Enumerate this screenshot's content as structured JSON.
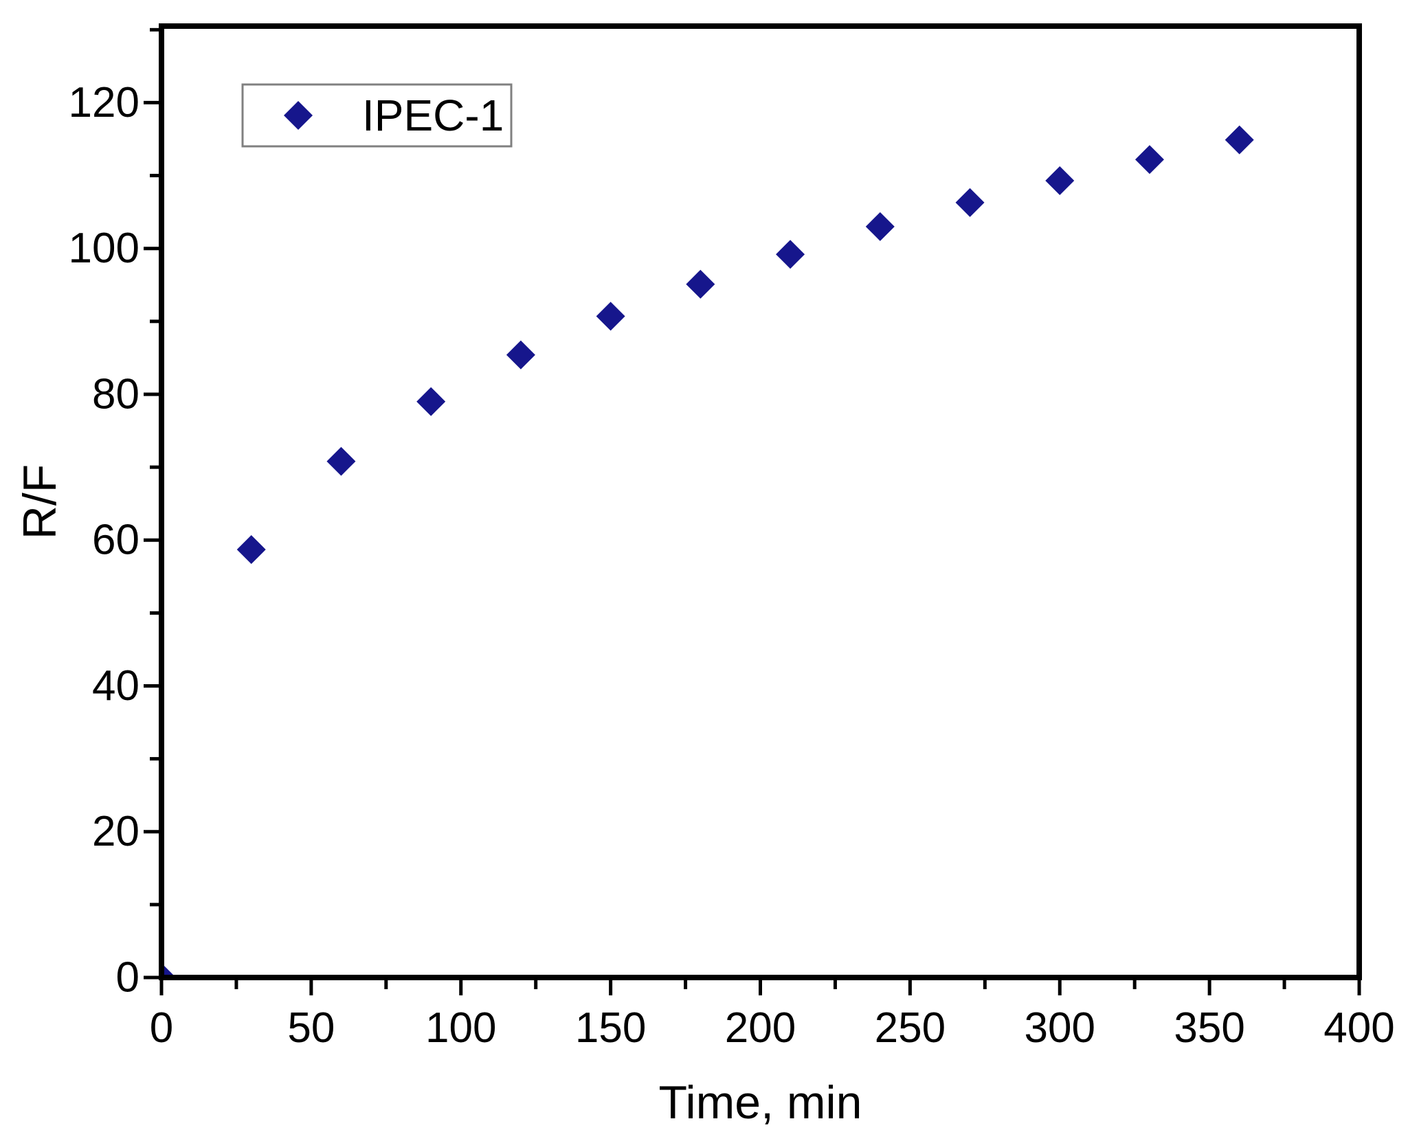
{
  "chart_data": {
    "type": "scatter",
    "title": "",
    "xlabel": "Time, min",
    "ylabel": "R/F",
    "xlim": [
      0,
      400
    ],
    "ylim": [
      0,
      130.5
    ],
    "xticks": [
      0,
      50,
      100,
      150,
      200,
      250,
      300,
      350,
      400
    ],
    "yticks": [
      0,
      20,
      40,
      60,
      80,
      100,
      120
    ],
    "x_minor_step": 25,
    "y_minor_step": 10,
    "grid": false,
    "legend": {
      "position": "top-left",
      "entries": [
        {
          "label": "IPEC-1",
          "marker": "diamond",
          "color": "#16168C"
        }
      ]
    },
    "series": [
      {
        "name": "IPEC-1",
        "marker": "diamond",
        "color": "#16168C",
        "x": [
          0,
          30,
          60,
          90,
          120,
          150,
          180,
          210,
          240,
          270,
          300,
          330,
          360
        ],
        "y": [
          0,
          58.7,
          70.8,
          79.0,
          85.4,
          90.7,
          95.1,
          99.2,
          103.0,
          106.3,
          109.3,
          112.2,
          114.9
        ]
      }
    ]
  },
  "colors": {
    "axis": "#000000",
    "text": "#000000",
    "legend_border": "#808080",
    "background": "#ffffff"
  }
}
